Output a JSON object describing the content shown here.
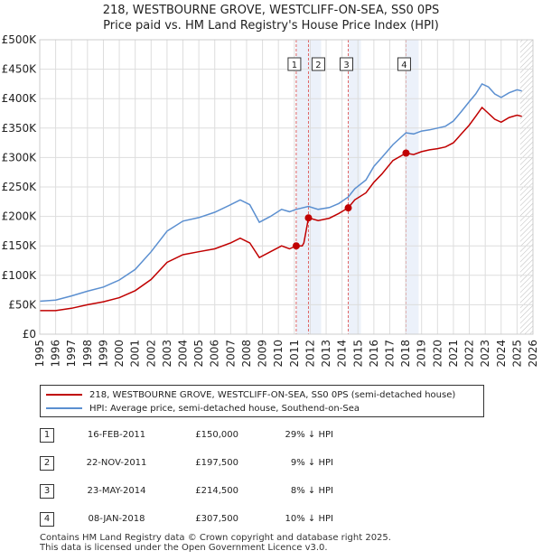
{
  "title_line1": "218, WESTBOURNE GROVE, WESTCLIFF-ON-SEA, SS0 0PS",
  "title_line2": "Price paid vs. HM Land Registry's House Price Index (HPI)",
  "colors": {
    "property": "#c00000",
    "hpi": "#5b8fd0",
    "grid": "#dddddd",
    "shade": "#dce6f5"
  },
  "chart_data": {
    "type": "line",
    "y_ticks": [
      "£0",
      "£50K",
      "£100K",
      "£150K",
      "£200K",
      "£250K",
      "£300K",
      "£350K",
      "£400K",
      "£450K",
      "£500K"
    ],
    "ylim": [
      0,
      500000
    ],
    "x_ticks": [
      "1995",
      "1996",
      "1997",
      "1998",
      "1999",
      "2000",
      "2001",
      "2002",
      "2003",
      "2004",
      "2005",
      "2006",
      "2007",
      "2008",
      "2009",
      "2010",
      "2011",
      "2012",
      "2013",
      "2014",
      "2015",
      "2016",
      "2017",
      "2018",
      "2019",
      "2020",
      "2021",
      "2022",
      "2023",
      "2024",
      "2025",
      "2026"
    ],
    "xlim": [
      1995,
      2026
    ],
    "forecast_start": 2025.2,
    "series": [
      {
        "name": "218, WESTBOURNE GROVE, WESTCLIFF-ON-SEA, SS0 0PS (semi-detached house)",
        "color": "#c00000",
        "points": [
          [
            1995,
            40000
          ],
          [
            1996,
            40000
          ],
          [
            1997,
            44000
          ],
          [
            1998,
            50000
          ],
          [
            1999,
            55000
          ],
          [
            2000,
            62000
          ],
          [
            2001,
            74000
          ],
          [
            2002,
            93000
          ],
          [
            2003,
            122000
          ],
          [
            2004,
            135000
          ],
          [
            2005,
            140000
          ],
          [
            2006,
            145000
          ],
          [
            2007,
            155000
          ],
          [
            2007.6,
            163000
          ],
          [
            2008.2,
            155000
          ],
          [
            2008.8,
            130000
          ],
          [
            2009.5,
            140000
          ],
          [
            2010.2,
            150000
          ],
          [
            2010.7,
            145000
          ],
          [
            2011.12,
            150000
          ],
          [
            2011.5,
            150000
          ],
          [
            2011.6,
            155000
          ],
          [
            2011.89,
            197500
          ],
          [
            2012.5,
            193000
          ],
          [
            2013.2,
            197000
          ],
          [
            2013.8,
            205000
          ],
          [
            2014.39,
            214500
          ],
          [
            2014.8,
            228000
          ],
          [
            2015.5,
            240000
          ],
          [
            2016,
            258000
          ],
          [
            2016.5,
            272000
          ],
          [
            2017.2,
            295000
          ],
          [
            2018.02,
            307500
          ],
          [
            2018.5,
            305000
          ],
          [
            2019,
            310000
          ],
          [
            2019.5,
            313000
          ],
          [
            2020,
            315000
          ],
          [
            2020.5,
            318000
          ],
          [
            2021,
            325000
          ],
          [
            2021.5,
            340000
          ],
          [
            2022,
            355000
          ],
          [
            2022.4,
            370000
          ],
          [
            2022.8,
            385000
          ],
          [
            2023.2,
            375000
          ],
          [
            2023.6,
            365000
          ],
          [
            2024,
            360000
          ],
          [
            2024.5,
            368000
          ],
          [
            2025,
            372000
          ],
          [
            2025.3,
            370000
          ]
        ]
      },
      {
        "name": "HPI: Average price, semi-detached house, Southend-on-Sea",
        "color": "#5b8fd0",
        "points": [
          [
            1995,
            56000
          ],
          [
            1996,
            58000
          ],
          [
            1997,
            65000
          ],
          [
            1998,
            73000
          ],
          [
            1999,
            80000
          ],
          [
            2000,
            92000
          ],
          [
            2001,
            110000
          ],
          [
            2002,
            140000
          ],
          [
            2003,
            175000
          ],
          [
            2004,
            192000
          ],
          [
            2005,
            198000
          ],
          [
            2006,
            207000
          ],
          [
            2007,
            220000
          ],
          [
            2007.6,
            228000
          ],
          [
            2008.2,
            220000
          ],
          [
            2008.8,
            190000
          ],
          [
            2009.5,
            200000
          ],
          [
            2010.2,
            212000
          ],
          [
            2010.7,
            208000
          ],
          [
            2011.12,
            212000
          ],
          [
            2011.89,
            217000
          ],
          [
            2012.5,
            212000
          ],
          [
            2013.2,
            215000
          ],
          [
            2013.8,
            222000
          ],
          [
            2014.39,
            233000
          ],
          [
            2014.8,
            247000
          ],
          [
            2015.5,
            262000
          ],
          [
            2016,
            285000
          ],
          [
            2016.5,
            300000
          ],
          [
            2017.2,
            322000
          ],
          [
            2018.02,
            342000
          ],
          [
            2018.5,
            340000
          ],
          [
            2019,
            345000
          ],
          [
            2019.5,
            347000
          ],
          [
            2020,
            350000
          ],
          [
            2020.5,
            353000
          ],
          [
            2021,
            362000
          ],
          [
            2021.5,
            378000
          ],
          [
            2022,
            395000
          ],
          [
            2022.4,
            408000
          ],
          [
            2022.8,
            425000
          ],
          [
            2023.2,
            420000
          ],
          [
            2023.6,
            408000
          ],
          [
            2024,
            402000
          ],
          [
            2024.5,
            410000
          ],
          [
            2025,
            415000
          ],
          [
            2025.3,
            413000
          ]
        ]
      }
    ],
    "sales": [
      {
        "label": "1",
        "x": 2011.12,
        "price": 150000
      },
      {
        "label": "2",
        "x": 2011.89,
        "price": 197500
      },
      {
        "label": "3",
        "x": 2014.39,
        "price": 214500
      },
      {
        "label": "4",
        "x": 2018.02,
        "price": 307500
      }
    ]
  },
  "legend": {
    "property": "218, WESTBOURNE GROVE, WESTCLIFF-ON-SEA, SS0 0PS (semi-detached house)",
    "hpi": "HPI: Average price, semi-detached house, Southend-on-Sea"
  },
  "transactions": [
    {
      "num": "1",
      "date": "16-FEB-2011",
      "price": "£150,000",
      "hpi": "29% ↓ HPI"
    },
    {
      "num": "2",
      "date": "22-NOV-2011",
      "price": "£197,500",
      "hpi": "9% ↓ HPI"
    },
    {
      "num": "3",
      "date": "23-MAY-2014",
      "price": "£214,500",
      "hpi": "8% ↓ HPI"
    },
    {
      "num": "4",
      "date": "08-JAN-2018",
      "price": "£307,500",
      "hpi": "10% ↓ HPI"
    }
  ],
  "footer_line1": "Contains HM Land Registry data © Crown copyright and database right 2025.",
  "footer_line2": "This data is licensed under the Open Government Licence v3.0."
}
